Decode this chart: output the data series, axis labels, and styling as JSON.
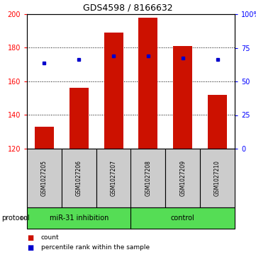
{
  "title": "GDS4598 / 8166632",
  "samples": [
    "GSM1027205",
    "GSM1027206",
    "GSM1027207",
    "GSM1027208",
    "GSM1027209",
    "GSM1027210"
  ],
  "counts": [
    133,
    156,
    189,
    198,
    181,
    152
  ],
  "percentile_ranks": [
    171,
    173,
    175,
    175,
    174,
    173
  ],
  "ylim_left": [
    120,
    200
  ],
  "ylim_right": [
    0,
    100
  ],
  "yticks_left": [
    120,
    140,
    160,
    180,
    200
  ],
  "yticks_right": [
    0,
    25,
    50,
    75,
    100
  ],
  "ytick_labels_right": [
    "0",
    "25",
    "50",
    "75",
    "100%"
  ],
  "bar_color": "#cc1100",
  "dot_color": "#0000cc",
  "bar_bottom": 120,
  "group1_label": "miR-31 inhibition",
  "group2_label": "control",
  "protocol_label": "protocol",
  "legend_count_label": "count",
  "legend_percentile_label": "percentile rank within the sample",
  "label_area_bg": "#cccccc",
  "group_area_bg": "#55dd55",
  "title_fontsize": 9,
  "tick_fontsize": 7,
  "sample_fontsize": 5.5,
  "group_fontsize": 7,
  "legend_fontsize": 6.5,
  "protocol_fontsize": 7
}
